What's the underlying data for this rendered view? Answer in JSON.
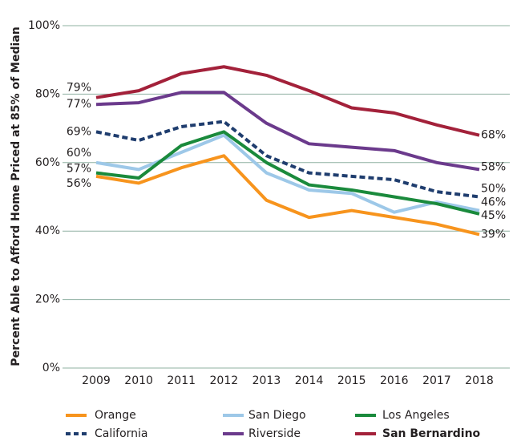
{
  "chart_data": {
    "type": "line",
    "y_label": "Percent Able to Afford Home Priced at 85% of Median",
    "categories": [
      "2009",
      "2010",
      "2011",
      "2012",
      "2013",
      "2014",
      "2015",
      "2016",
      "2017",
      "2018"
    ],
    "ylim": [
      0,
      100
    ],
    "yticks": [
      {
        "value": 0,
        "label": "0%"
      },
      {
        "value": 20,
        "label": "20%"
      },
      {
        "value": 40,
        "label": "40%"
      },
      {
        "value": 60,
        "label": "60%"
      },
      {
        "value": 80,
        "label": "80%"
      },
      {
        "value": 100,
        "label": "100%"
      }
    ],
    "grid": true,
    "grid_color": "#8fb0a2",
    "series": [
      {
        "name": "Orange",
        "color": "#f7941d",
        "dashed": false,
        "bold": false,
        "values": [
          56,
          54,
          58.5,
          62,
          49,
          44,
          46,
          44,
          42,
          39
        ],
        "value_labels": [
          "56%",
          null,
          null,
          null,
          null,
          null,
          null,
          null,
          null,
          "39%"
        ]
      },
      {
        "name": "San Diego",
        "color": "#9dc8e8",
        "dashed": false,
        "bold": false,
        "values": [
          60,
          58,
          63,
          68,
          57,
          52,
          51,
          45.5,
          48.5,
          46
        ],
        "value_labels": [
          "60%",
          null,
          null,
          null,
          null,
          null,
          null,
          null,
          null,
          "46%"
        ]
      },
      {
        "name": "Los Angeles",
        "color": "#1a8a3c",
        "dashed": false,
        "bold": false,
        "values": [
          57,
          55.5,
          65,
          69,
          60,
          53.5,
          52,
          50,
          48,
          45
        ],
        "value_labels": [
          "57%",
          null,
          null,
          null,
          null,
          null,
          null,
          null,
          null,
          "45%"
        ]
      },
      {
        "name": "California",
        "color": "#1f3d6e",
        "dashed": true,
        "bold": false,
        "values": [
          69,
          66.5,
          70.5,
          72,
          62,
          57,
          56,
          55,
          51.5,
          50
        ],
        "value_labels": [
          "69%",
          null,
          null,
          null,
          null,
          null,
          null,
          null,
          null,
          "50%"
        ]
      },
      {
        "name": "Riverside",
        "color": "#6b3a8c",
        "dashed": false,
        "bold": false,
        "values": [
          77,
          77.5,
          80.5,
          80.5,
          71.5,
          65.5,
          64.5,
          63.5,
          60,
          58
        ],
        "value_labels": [
          "77%",
          null,
          null,
          null,
          null,
          null,
          null,
          null,
          null,
          "58%"
        ]
      },
      {
        "name": "San Bernardino",
        "color": "#a3213a",
        "dashed": false,
        "bold": true,
        "values": [
          79,
          81,
          86,
          88,
          85.5,
          81,
          76,
          74.5,
          71,
          68
        ],
        "value_labels": [
          "79%",
          null,
          null,
          null,
          null,
          null,
          null,
          null,
          null,
          "68%"
        ]
      }
    ]
  }
}
